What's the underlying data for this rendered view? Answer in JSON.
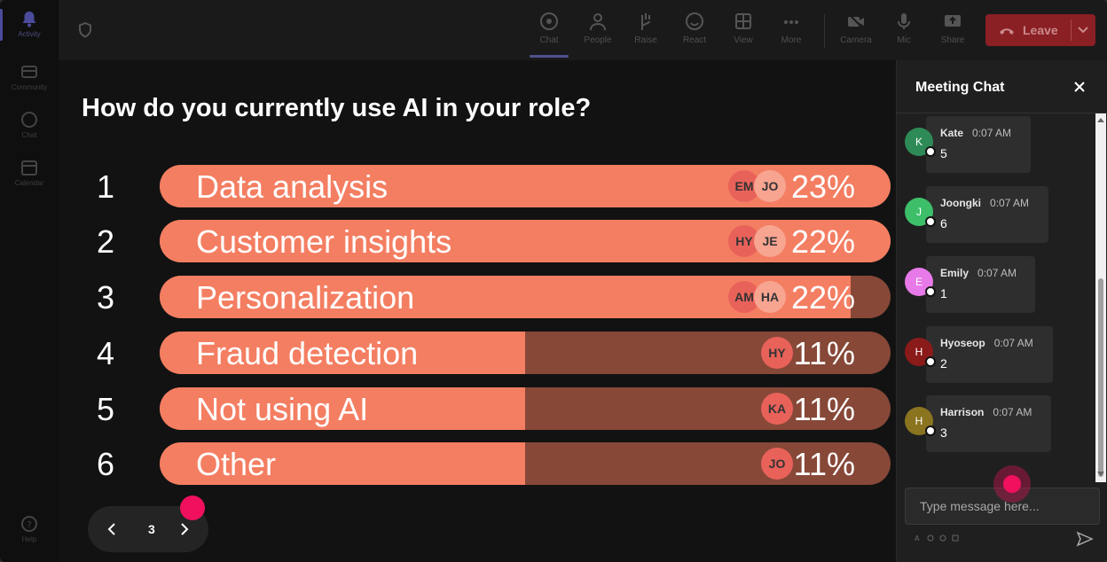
{
  "rail": {
    "items": [
      {
        "label": "Activity",
        "icon": "bell-icon"
      },
      {
        "label": "Community",
        "icon": "community-icon"
      },
      {
        "label": "Chat",
        "icon": "chat-icon"
      },
      {
        "label": "Calendar",
        "icon": "calendar-icon"
      },
      {
        "label": "Help",
        "icon": "help-icon"
      }
    ]
  },
  "toolbar": {
    "chat": "Chat",
    "people": "People",
    "raise": "Raise",
    "react": "React",
    "view": "View",
    "more": "More",
    "camera": "Camera",
    "mic": "Mic",
    "share": "Share",
    "leave": "Leave"
  },
  "poll": {
    "question": "How do you currently use AI in your role?",
    "options": [
      {
        "num": "1",
        "label": "Data analysis",
        "pct": "23%",
        "fill": 1.0,
        "avatars": [
          "EM",
          "JO"
        ]
      },
      {
        "num": "2",
        "label": "Customer insights",
        "pct": "22%",
        "fill": 1.0,
        "avatars": [
          "HY",
          "JE"
        ]
      },
      {
        "num": "3",
        "label": "Personalization",
        "pct": "22%",
        "fill": 0.945,
        "avatars": [
          "AM",
          "HA"
        ]
      },
      {
        "num": "4",
        "label": "Fraud detection",
        "pct": "11%",
        "fill": 0.5,
        "avatars": [
          "HY"
        ]
      },
      {
        "num": "5",
        "label": "Not using AI",
        "pct": "11%",
        "fill": 0.5,
        "avatars": [
          "KA"
        ]
      },
      {
        "num": "6",
        "label": "Other",
        "pct": "11%",
        "fill": 0.5,
        "avatars": [
          "JO"
        ]
      }
    ],
    "page": "3"
  },
  "chat": {
    "title": "Meeting Chat",
    "messages": [
      {
        "initial": "K",
        "name": "Kate",
        "time": "0:07 AM",
        "text": "5",
        "color": "#2e8b57"
      },
      {
        "initial": "J",
        "name": "Joongki",
        "time": "0:07 AM",
        "text": "6",
        "color": "#3dbf6a"
      },
      {
        "initial": "E",
        "name": "Emily",
        "time": "0:07 AM",
        "text": "1",
        "color": "#e879e8"
      },
      {
        "initial": "H",
        "name": "Hyoseop",
        "time": "0:07 AM",
        "text": "2",
        "color": "#8b1a1a"
      },
      {
        "initial": "H",
        "name": "Harrison",
        "time": "0:07 AM",
        "text": "3",
        "color": "#8a7420"
      }
    ],
    "placeholder": "Type message here..."
  }
}
